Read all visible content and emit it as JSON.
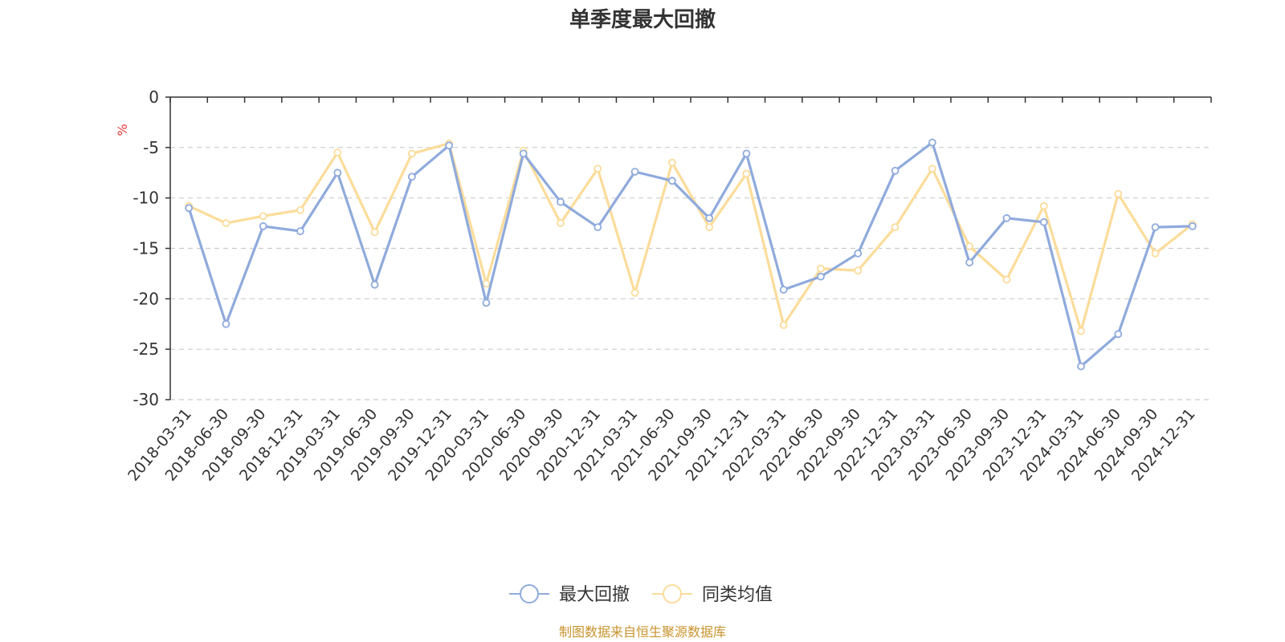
{
  "chart_data": {
    "type": "line",
    "title": "单季度最大回撤",
    "ylabel": "%",
    "ylim": [
      -30,
      0
    ],
    "yticks": [
      0,
      -5,
      -10,
      -15,
      -20,
      -25,
      -30
    ],
    "grid": true,
    "legend_position": "bottom-center",
    "categories": [
      "2018-03-31",
      "2018-06-30",
      "2018-09-30",
      "2018-12-31",
      "2019-03-31",
      "2019-06-30",
      "2019-09-30",
      "2019-12-31",
      "2020-03-31",
      "2020-06-30",
      "2020-09-30",
      "2020-12-31",
      "2021-03-31",
      "2021-06-30",
      "2021-09-30",
      "2021-12-31",
      "2022-03-31",
      "2022-06-30",
      "2022-09-30",
      "2022-12-31",
      "2023-03-31",
      "2023-06-30",
      "2023-09-30",
      "2023-12-31",
      "2024-03-31",
      "2024-06-30",
      "2024-09-30",
      "2024-12-31"
    ],
    "series": [
      {
        "name": "最大回撤",
        "color": "#8faadc",
        "values": [
          -11.0,
          -22.5,
          -12.8,
          -13.3,
          -7.5,
          -18.6,
          -7.9,
          -4.8,
          -20.4,
          -5.6,
          -10.4,
          -12.9,
          -7.4,
          -8.3,
          -12.0,
          -5.6,
          -19.1,
          -17.8,
          -15.5,
          -7.3,
          -4.5,
          -16.4,
          -12.0,
          -12.4,
          -26.7,
          -23.5,
          -12.9,
          -12.8
        ]
      },
      {
        "name": "同类均值",
        "color": "#fbdc9a",
        "values": [
          -10.8,
          -12.5,
          -11.8,
          -11.2,
          -5.5,
          -13.4,
          -5.6,
          -4.6,
          -18.5,
          -5.3,
          -12.5,
          -7.1,
          -19.4,
          -6.5,
          -12.9,
          -7.6,
          -22.6,
          -17.0,
          -17.2,
          -12.9,
          -7.1,
          -14.8,
          -18.1,
          -10.8,
          -23.2,
          -9.6,
          -15.5,
          -12.6
        ]
      }
    ]
  },
  "colors": {
    "text": "#333333",
    "unit": "#e53935",
    "grid": "#cccccc",
    "source": "#c9932d"
  },
  "footer": {
    "source": "制图数据来自恒生聚源数据库"
  }
}
